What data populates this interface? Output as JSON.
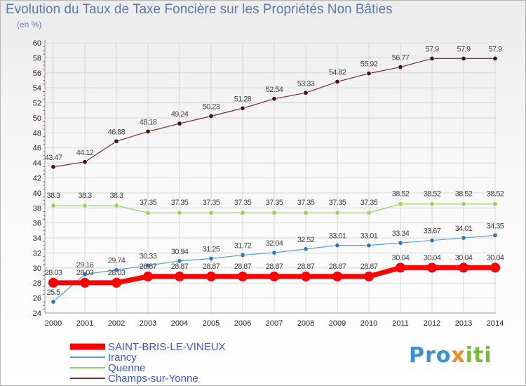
{
  "title": "Evolution du Taux de Taxe Foncière sur les Propriétés Non Bâties",
  "unit_label": "(en %)",
  "logo": {
    "part1": "Pro",
    "part2": "x",
    "part3": "iti"
  },
  "chart_data": {
    "type": "line",
    "title": "Evolution du Taux de Taxe Foncière sur les Propriétés Non Bâties",
    "ylabel": "(en %)",
    "xlabel": "",
    "ylim": [
      24,
      60
    ],
    "yticks": [
      24,
      26,
      28,
      30,
      32,
      34,
      36,
      38,
      40,
      42,
      44,
      46,
      48,
      50,
      52,
      54,
      56,
      58,
      60
    ],
    "categories": [
      "2000",
      "2001",
      "2002",
      "2003",
      "2004",
      "2005",
      "2006",
      "2007",
      "2008",
      "2009",
      "2010",
      "2011",
      "2012",
      "2013",
      "2014"
    ],
    "series": [
      {
        "name": "Champs-sur-Yonne",
        "color": "#7a2e2e",
        "marker": "#4a1010",
        "values": [
          43.47,
          44.12,
          46.88,
          48.18,
          49.24,
          50.23,
          51.28,
          52.54,
          53.33,
          54.82,
          55.92,
          56.77,
          57.9,
          57.9,
          57.9
        ],
        "labels": [
          "43.47",
          "44.12",
          "46.88",
          "48.18",
          "49.24",
          "50.23",
          "51.28",
          "52.54",
          "53.33",
          "54.82",
          "55.92",
          "56.77",
          "57.9",
          "57.9",
          "57.9"
        ]
      },
      {
        "name": "Quenne",
        "color": "#8fd65a",
        "marker": "#8fd65a",
        "values": [
          38.3,
          38.3,
          38.3,
          37.35,
          37.35,
          37.35,
          37.35,
          37.35,
          37.35,
          37.35,
          37.35,
          38.52,
          38.52,
          38.52,
          38.52
        ],
        "labels": [
          "38.3",
          "38.3",
          "38.3",
          "37.35",
          "37.35",
          "37.35",
          "37.35",
          "37.35",
          "37.35",
          "37.35",
          "37.35",
          "38.52",
          "38.52",
          "38.52",
          "38.52"
        ]
      },
      {
        "name": "Irancy",
        "color": "#5a9fd4",
        "marker": "#2e78b8",
        "values": [
          25.5,
          29.16,
          29.74,
          30.33,
          30.94,
          31.25,
          31.72,
          32.04,
          32.52,
          33.01,
          33.01,
          33.34,
          33.67,
          34.01,
          34.35
        ],
        "labels": [
          "25.5",
          "29.16",
          "29.74",
          "30.33",
          "30.94",
          "31.25",
          "31.72",
          "32.04",
          "32.52",
          "33.01",
          "33.01",
          "33.34",
          "33.67",
          "34.01",
          "34.35"
        ]
      },
      {
        "name": "SAINT-BRIS-LE-VINEUX",
        "color": "#ff0000",
        "marker": "#ff0000",
        "thick": true,
        "values": [
          28.03,
          28.03,
          28.03,
          28.87,
          28.87,
          28.87,
          28.87,
          28.87,
          28.87,
          28.87,
          28.87,
          30.04,
          30.04,
          30.04,
          30.04
        ],
        "labels": [
          "28.03",
          "28.03",
          "28.03",
          "28.87",
          "28.87",
          "28.87",
          "28.87",
          "28.87",
          "28.87",
          "28.87",
          "28.87",
          "30.04",
          "30.04",
          "30.04",
          "30.04"
        ]
      }
    ],
    "legend": [
      "SAINT-BRIS-LE-VINEUX",
      "Irancy",
      "Quenne",
      "Champs-sur-Yonne"
    ],
    "legend_position": "bottom-left"
  }
}
